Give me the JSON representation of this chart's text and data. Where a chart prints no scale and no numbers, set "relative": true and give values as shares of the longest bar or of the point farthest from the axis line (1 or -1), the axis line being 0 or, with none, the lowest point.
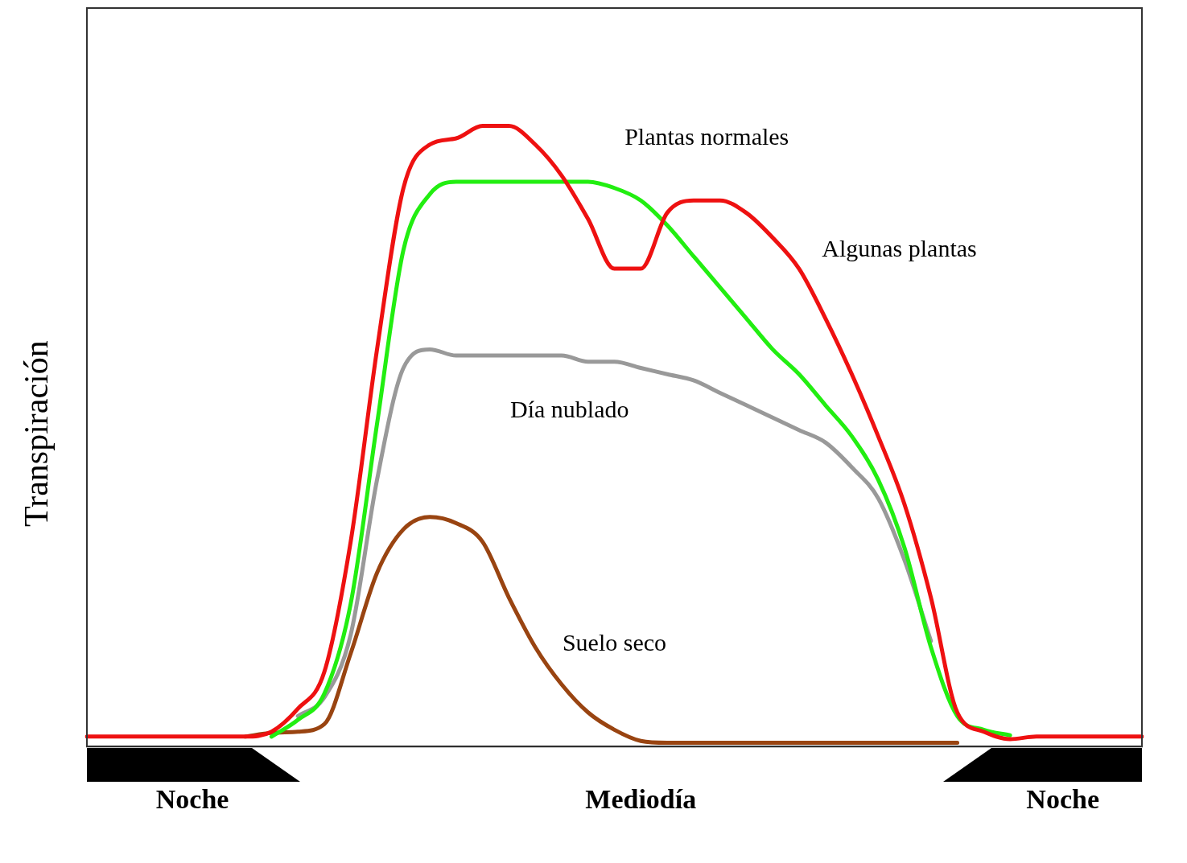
{
  "chart_data": {
    "type": "line",
    "relative": true,
    "ylabel": "Transpiración",
    "legend": false,
    "grid": false,
    "marker": "none",
    "categories": [
      null,
      null,
      null,
      null,
      "Noche",
      null,
      null,
      null,
      null,
      null,
      null,
      null,
      null,
      null,
      null,
      null,
      null,
      null,
      null,
      null,
      null,
      "Mediodía",
      null,
      null,
      null,
      null,
      null,
      null,
      null,
      null,
      null,
      null,
      null,
      null,
      null,
      null,
      null,
      "Noche",
      null,
      null,
      null
    ],
    "series": [
      {
        "name": "Algunas plantas",
        "color": "#ee1111",
        "values": [
          0.016,
          0.016,
          0.016,
          0.016,
          0.016,
          0.016,
          0.016,
          0.024,
          0.061,
          0.12,
          0.33,
          0.64,
          0.9,
          0.97,
          0.98,
          1,
          1,
          0.97,
          0.92,
          0.85,
          0.77,
          0.77,
          0.86,
          0.88,
          0.88,
          0.86,
          0.82,
          0.77,
          0.69,
          0.6,
          0.5,
          0.39,
          0.24,
          0.055,
          0.024,
          0.012,
          0.016,
          0.016,
          0.016,
          0.016,
          0.016
        ]
      },
      {
        "name": "Plantas normales",
        "color": "#22ee11",
        "values": [
          null,
          null,
          null,
          null,
          null,
          null,
          null,
          0.016,
          0.043,
          0.085,
          0.23,
          0.52,
          0.8,
          0.89,
          0.91,
          0.91,
          0.91,
          0.91,
          0.91,
          0.91,
          0.9,
          0.88,
          0.84,
          0.79,
          0.74,
          0.69,
          0.64,
          0.6,
          0.55,
          0.5,
          0.43,
          0.32,
          0.16,
          0.049,
          0.027,
          0.018,
          null,
          null,
          null,
          null,
          null
        ]
      },
      {
        "name": "Día nublado",
        "color": "#999999",
        "values": [
          null,
          null,
          null,
          null,
          null,
          null,
          null,
          null,
          0.049,
          0.079,
          0.18,
          0.43,
          0.61,
          0.64,
          0.63,
          0.63,
          0.63,
          0.63,
          0.63,
          0.62,
          0.62,
          0.61,
          0.6,
          0.59,
          0.57,
          0.55,
          0.53,
          0.51,
          0.49,
          0.45,
          0.4,
          0.3,
          0.17,
          null,
          null,
          null,
          null,
          null,
          null,
          null,
          null
        ]
      },
      {
        "name": "Suelo seco",
        "color": "#994411",
        "values": [
          null,
          null,
          null,
          null,
          null,
          null,
          0.016,
          0.022,
          0.024,
          0.036,
          0.15,
          0.28,
          0.35,
          0.37,
          0.36,
          0.33,
          0.24,
          0.16,
          0.1,
          0.055,
          0.027,
          0.009,
          0.006,
          0.006,
          0.006,
          0.006,
          0.006,
          0.006,
          0.006,
          0.006,
          0.006,
          0.006,
          0.006,
          0.006,
          null,
          null,
          null,
          null,
          null,
          null,
          null
        ]
      }
    ]
  }
}
